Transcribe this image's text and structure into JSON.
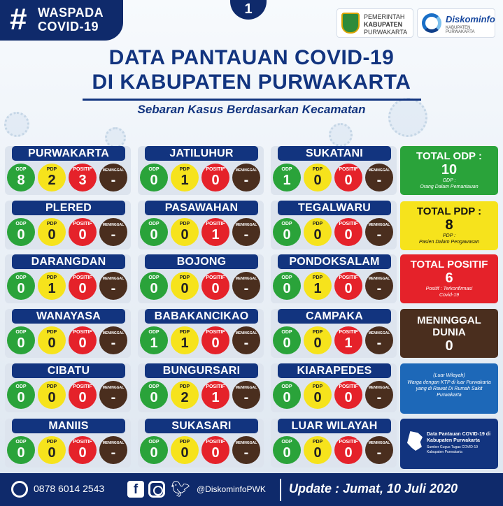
{
  "header": {
    "hashtag": "#",
    "tag_line1": "WASPADA",
    "tag_line2": "COVID-19",
    "page_number": "1",
    "logo_pemkab": [
      "PEMERINTAH",
      "KABUPATEN",
      "PURWAKARTA"
    ],
    "logo_diskominfo_name": "Diskominfo",
    "logo_diskominfo_sub": "KABUPATEN PURWAKARTA"
  },
  "title_line1": "DATA PANTAUAN COVID-19",
  "title_line2": "DI KABUPATEN PURWAKARTA",
  "subtitle": "Sebaran Kasus Berdasarkan Kecamatan",
  "labels": {
    "odp": "ODP",
    "pdp": "PDP",
    "positif": "POSITIF",
    "meninggal": "MENINGGAL"
  },
  "districts": [
    {
      "name": "PURWAKARTA",
      "odp": "8",
      "pdp": "2",
      "positif": "3",
      "meninggal": "-"
    },
    {
      "name": "JATILUHUR",
      "odp": "0",
      "pdp": "1",
      "positif": "0",
      "meninggal": "-"
    },
    {
      "name": "SUKATANI",
      "odp": "1",
      "pdp": "0",
      "positif": "0",
      "meninggal": "-"
    },
    {
      "name": "PLERED",
      "odp": "0",
      "pdp": "0",
      "positif": "0",
      "meninggal": "-"
    },
    {
      "name": "PASAWAHAN",
      "odp": "0",
      "pdp": "0",
      "positif": "1",
      "meninggal": "-"
    },
    {
      "name": "TEGALWARU",
      "odp": "0",
      "pdp": "0",
      "positif": "0",
      "meninggal": "-"
    },
    {
      "name": "DARANGDAN",
      "odp": "0",
      "pdp": "1",
      "positif": "0",
      "meninggal": "-"
    },
    {
      "name": "BOJONG",
      "odp": "0",
      "pdp": "0",
      "positif": "0",
      "meninggal": "-"
    },
    {
      "name": "PONDOKSALAM",
      "odp": "0",
      "pdp": "1",
      "positif": "0",
      "meninggal": "-"
    },
    {
      "name": "WANAYASA",
      "odp": "0",
      "pdp": "0",
      "positif": "0",
      "meninggal": "-"
    },
    {
      "name": "BABAKANCIKAO",
      "odp": "1",
      "pdp": "1",
      "positif": "0",
      "meninggal": "-"
    },
    {
      "name": "CAMPAKA",
      "odp": "0",
      "pdp": "0",
      "positif": "1",
      "meninggal": "-"
    },
    {
      "name": "CIBATU",
      "odp": "0",
      "pdp": "0",
      "positif": "0",
      "meninggal": "-"
    },
    {
      "name": "BUNGURSARI",
      "odp": "0",
      "pdp": "2",
      "positif": "1",
      "meninggal": "-"
    },
    {
      "name": "KIARAPEDES",
      "odp": "0",
      "pdp": "0",
      "positif": "0",
      "meninggal": "-"
    },
    {
      "name": "MANIIS",
      "odp": "0",
      "pdp": "0",
      "positif": "0",
      "meninggal": "-"
    },
    {
      "name": "SUKASARI",
      "odp": "0",
      "pdp": "0",
      "positif": "0",
      "meninggal": "-"
    },
    {
      "name": "LUAR WILAYAH",
      "odp": "0",
      "pdp": "0",
      "positif": "0",
      "meninggal": "-"
    }
  ],
  "totals": {
    "odp": {
      "title": "TOTAL ODP :",
      "value": "10",
      "desc1": "ODP :",
      "desc2": "Orang Dalam Pemantauan"
    },
    "pdp": {
      "title": "TOTAL PDP :",
      "value": "8",
      "desc1": "PDP :",
      "desc2": "Pasien Dalam Pengawasan"
    },
    "positif": {
      "title": "TOTAL POSITIF",
      "value": "6",
      "desc1": "Positif : Terkonfirmasi",
      "desc2": "Covid-19"
    },
    "meninggal": {
      "title1": "MENINGGAL",
      "title2": "DUNIA",
      "value": "0"
    }
  },
  "luar_wilayah_note": {
    "heading": "(Luar Wilayah)",
    "body": "Warga dengan KTP di luar Purwakarta yang di Rawat Di Rumah Sakit Purwakarta"
  },
  "map_note": {
    "title": "Data Pantauan COVID-19 di Kabupaten Purwakarta",
    "source": "Sumber Gugus Tugas COVID-19 Kabupaten Purwakarta"
  },
  "footer": {
    "phone": "0878 6014 2543",
    "handle": "@DiskominfoPWK",
    "update": "Update : Jumat, 10 Juli 2020"
  },
  "colors": {
    "navy": "#12347f",
    "odp_green": "#2aa33a",
    "pdp_yellow": "#f6e31c",
    "positif_red": "#e5222a",
    "meninggal_brown": "#4a2e1e",
    "luar_blue": "#1d68b8"
  }
}
